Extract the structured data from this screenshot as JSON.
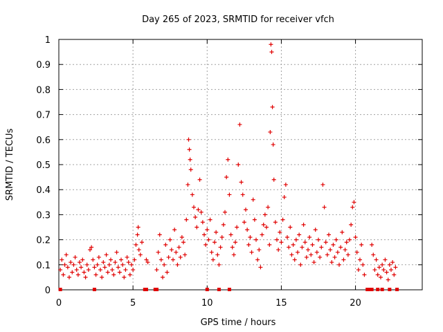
{
  "chart_data": {
    "type": "scatter",
    "title": "Day 265 of 2023, SRMTID for receiver vfch",
    "xlabel": "GPS time / hours",
    "ylabel": "SRMTID / TECUs",
    "xlim": [
      0,
      24.5
    ],
    "ylim": [
      0,
      1
    ],
    "x_ticks": [
      0,
      5,
      10,
      15,
      20
    ],
    "y_ticks": [
      0,
      0.1,
      0.2,
      0.3,
      0.4,
      0.5,
      0.6,
      0.7,
      0.8,
      0.9,
      1
    ],
    "x_tick_labels": [
      "0",
      "5",
      "10",
      "15",
      "20"
    ],
    "y_tick_labels": [
      "0",
      "0.1",
      "0.2",
      "0.3",
      "0.4",
      "0.5",
      "0.6",
      "0.7",
      "0.8",
      "0.9",
      "1"
    ],
    "grid": true,
    "marker": "+",
    "color": "#e00000",
    "series": [
      {
        "name": "SRMTID",
        "points": [
          [
            0.1,
            0.08
          ],
          [
            0.2,
            0.12
          ],
          [
            0.3,
            0.06
          ],
          [
            0.4,
            0.1
          ],
          [
            0.5,
            0.14
          ],
          [
            0.6,
            0.09
          ],
          [
            0.7,
            0.05
          ],
          [
            0.8,
            0.11
          ],
          [
            0.9,
            0.07
          ],
          [
            1.0,
            0.1
          ],
          [
            1.1,
            0.13
          ],
          [
            1.2,
            0.08
          ],
          [
            1.3,
            0.06
          ],
          [
            1.4,
            0.11
          ],
          [
            1.5,
            0.09
          ],
          [
            1.6,
            0.12
          ],
          [
            1.7,
            0.07
          ],
          [
            1.8,
            0.05
          ],
          [
            1.9,
            0.1
          ],
          [
            2.0,
            0.08
          ],
          [
            2.1,
            0.16
          ],
          [
            2.2,
            0.17
          ],
          [
            2.3,
            0.12
          ],
          [
            2.4,
            0.09
          ],
          [
            2.5,
            0.06
          ],
          [
            2.6,
            0.1
          ],
          [
            2.7,
            0.13
          ],
          [
            2.8,
            0.08
          ],
          [
            2.9,
            0.05
          ],
          [
            3.0,
            0.11
          ],
          [
            3.1,
            0.09
          ],
          [
            3.2,
            0.14
          ],
          [
            3.3,
            0.07
          ],
          [
            3.4,
            0.1
          ],
          [
            3.5,
            0.12
          ],
          [
            3.6,
            0.08
          ],
          [
            3.7,
            0.06
          ],
          [
            3.8,
            0.11
          ],
          [
            3.9,
            0.15
          ],
          [
            4.0,
            0.09
          ],
          [
            4.1,
            0.07
          ],
          [
            4.2,
            0.12
          ],
          [
            4.3,
            0.1
          ],
          [
            4.4,
            0.05
          ],
          [
            4.5,
            0.08
          ],
          [
            4.6,
            0.13
          ],
          [
            4.7,
            0.11
          ],
          [
            4.8,
            0.06
          ],
          [
            4.9,
            0.1
          ],
          [
            5.0,
            0.08
          ],
          [
            5.1,
            0.12
          ],
          [
            5.2,
            0.18
          ],
          [
            5.3,
            0.22
          ],
          [
            5.35,
            0.25
          ],
          [
            5.4,
            0.16
          ],
          [
            5.5,
            0.14
          ],
          [
            5.6,
            0.19
          ],
          [
            5.9,
            0.12
          ],
          [
            6.0,
            0.11
          ],
          [
            6.6,
            0.08
          ],
          [
            6.7,
            0.15
          ],
          [
            6.8,
            0.22
          ],
          [
            6.9,
            0.12
          ],
          [
            7.0,
            0.05
          ],
          [
            7.1,
            0.1
          ],
          [
            7.2,
            0.18
          ],
          [
            7.3,
            0.07
          ],
          [
            7.4,
            0.13
          ],
          [
            7.5,
            0.2
          ],
          [
            7.6,
            0.16
          ],
          [
            7.7,
            0.12
          ],
          [
            7.8,
            0.24
          ],
          [
            7.9,
            0.15
          ],
          [
            8.0,
            0.1
          ],
          [
            8.1,
            0.17
          ],
          [
            8.2,
            0.13
          ],
          [
            8.3,
            0.21
          ],
          [
            8.4,
            0.19
          ],
          [
            8.5,
            0.14
          ],
          [
            8.6,
            0.28
          ],
          [
            8.7,
            0.42
          ],
          [
            8.75,
            0.6
          ],
          [
            8.8,
            0.56
          ],
          [
            8.85,
            0.52
          ],
          [
            8.9,
            0.48
          ],
          [
            9.0,
            0.38
          ],
          [
            9.1,
            0.33
          ],
          [
            9.2,
            0.29
          ],
          [
            9.3,
            0.25
          ],
          [
            9.4,
            0.32
          ],
          [
            9.5,
            0.44
          ],
          [
            9.6,
            0.31
          ],
          [
            9.7,
            0.27
          ],
          [
            9.8,
            0.22
          ],
          [
            9.9,
            0.18
          ],
          [
            10.0,
            0.24
          ],
          [
            10.1,
            0.2
          ],
          [
            10.2,
            0.28
          ],
          [
            10.3,
            0.15
          ],
          [
            10.4,
            0.12
          ],
          [
            10.5,
            0.19
          ],
          [
            10.6,
            0.23
          ],
          [
            10.7,
            0.14
          ],
          [
            10.8,
            0.1
          ],
          [
            10.9,
            0.17
          ],
          [
            11.0,
            0.21
          ],
          [
            11.1,
            0.26
          ],
          [
            11.2,
            0.31
          ],
          [
            11.3,
            0.45
          ],
          [
            11.4,
            0.52
          ],
          [
            11.5,
            0.38
          ],
          [
            11.6,
            0.22
          ],
          [
            11.7,
            0.17
          ],
          [
            11.8,
            0.14
          ],
          [
            11.9,
            0.19
          ],
          [
            12.0,
            0.25
          ],
          [
            12.1,
            0.5
          ],
          [
            12.2,
            0.66
          ],
          [
            12.3,
            0.43
          ],
          [
            12.4,
            0.38
          ],
          [
            12.5,
            0.27
          ],
          [
            12.6,
            0.32
          ],
          [
            12.7,
            0.24
          ],
          [
            12.8,
            0.18
          ],
          [
            12.9,
            0.21
          ],
          [
            13.0,
            0.15
          ],
          [
            13.1,
            0.36
          ],
          [
            13.2,
            0.28
          ],
          [
            13.3,
            0.2
          ],
          [
            13.4,
            0.12
          ],
          [
            13.5,
            0.16
          ],
          [
            13.6,
            0.09
          ],
          [
            13.7,
            0.22
          ],
          [
            13.8,
            0.26
          ],
          [
            13.9,
            0.3
          ],
          [
            14.0,
            0.25
          ],
          [
            14.1,
            0.33
          ],
          [
            14.2,
            0.18
          ],
          [
            14.25,
            0.63
          ],
          [
            14.3,
            0.98
          ],
          [
            14.35,
            0.95
          ],
          [
            14.4,
            0.73
          ],
          [
            14.45,
            0.58
          ],
          [
            14.5,
            0.44
          ],
          [
            14.6,
            0.27
          ],
          [
            14.7,
            0.2
          ],
          [
            14.8,
            0.16
          ],
          [
            14.9,
            0.23
          ],
          [
            15.0,
            0.19
          ],
          [
            15.1,
            0.28
          ],
          [
            15.2,
            0.37
          ],
          [
            15.3,
            0.42
          ],
          [
            15.4,
            0.21
          ],
          [
            15.5,
            0.17
          ],
          [
            15.6,
            0.25
          ],
          [
            15.7,
            0.14
          ],
          [
            15.8,
            0.18
          ],
          [
            15.9,
            0.12
          ],
          [
            16.0,
            0.2
          ],
          [
            16.1,
            0.15
          ],
          [
            16.2,
            0.22
          ],
          [
            16.3,
            0.1
          ],
          [
            16.4,
            0.17
          ],
          [
            16.5,
            0.26
          ],
          [
            16.6,
            0.19
          ],
          [
            16.7,
            0.13
          ],
          [
            16.8,
            0.16
          ],
          [
            16.9,
            0.21
          ],
          [
            17.0,
            0.14
          ],
          [
            17.1,
            0.18
          ],
          [
            17.2,
            0.11
          ],
          [
            17.3,
            0.24
          ],
          [
            17.4,
            0.15
          ],
          [
            17.5,
            0.2
          ],
          [
            17.6,
            0.13
          ],
          [
            17.7,
            0.17
          ],
          [
            17.8,
            0.42
          ],
          [
            17.9,
            0.33
          ],
          [
            18.0,
            0.19
          ],
          [
            18.1,
            0.14
          ],
          [
            18.2,
            0.22
          ],
          [
            18.3,
            0.16
          ],
          [
            18.4,
            0.11
          ],
          [
            18.5,
            0.18
          ],
          [
            18.6,
            0.13
          ],
          [
            18.7,
            0.2
          ],
          [
            18.8,
            0.15
          ],
          [
            18.9,
            0.1
          ],
          [
            19.0,
            0.17
          ],
          [
            19.1,
            0.23
          ],
          [
            19.2,
            0.12
          ],
          [
            19.3,
            0.16
          ],
          [
            19.4,
            0.19
          ],
          [
            19.5,
            0.14
          ],
          [
            19.6,
            0.2
          ],
          [
            19.7,
            0.26
          ],
          [
            19.8,
            0.33
          ],
          [
            19.9,
            0.35
          ],
          [
            20.0,
            0.21
          ],
          [
            20.1,
            0.15
          ],
          [
            20.2,
            0.08
          ],
          [
            20.3,
            0.12
          ],
          [
            20.4,
            0.18
          ],
          [
            20.5,
            0.1
          ],
          [
            20.6,
            0.06
          ],
          [
            21.1,
            0.18
          ],
          [
            21.2,
            0.14
          ],
          [
            21.3,
            0.08
          ],
          [
            21.4,
            0.12
          ],
          [
            21.5,
            0.06
          ],
          [
            21.6,
            0.09
          ],
          [
            21.7,
            0.05
          ],
          [
            21.8,
            0.1
          ],
          [
            21.9,
            0.08
          ],
          [
            22.0,
            0.12
          ],
          [
            22.1,
            0.07
          ],
          [
            22.2,
            0.04
          ],
          [
            22.3,
            0.1
          ],
          [
            22.4,
            0.08
          ],
          [
            22.5,
            0.11
          ],
          [
            22.6,
            0.06
          ],
          [
            22.7,
            0.09
          ]
        ]
      }
    ],
    "zero_markers": [
      0.1,
      2.4,
      5.8,
      5.9,
      6.5,
      6.6,
      10.0,
      10.8,
      11.5,
      20.8,
      20.9,
      21.0,
      21.1,
      21.5,
      21.8,
      22.3,
      22.8
    ]
  }
}
